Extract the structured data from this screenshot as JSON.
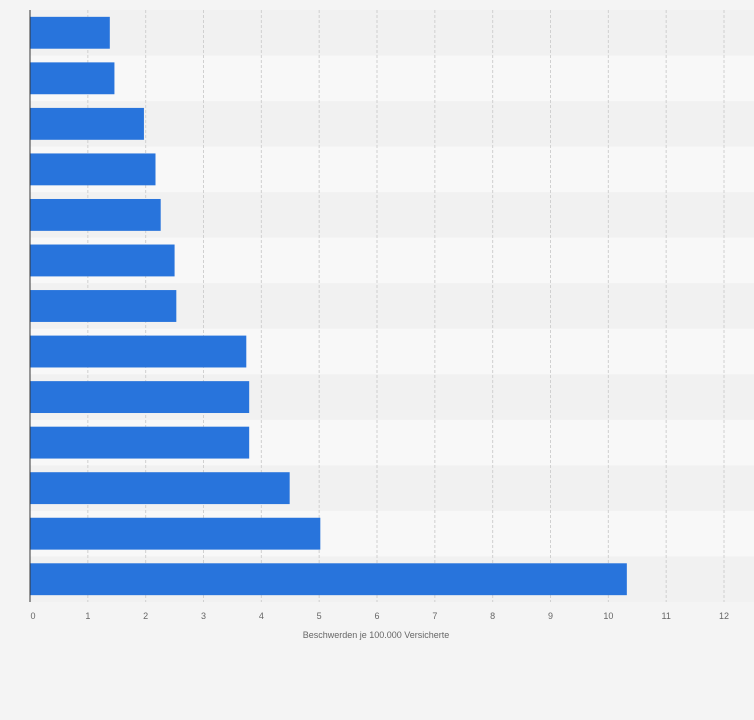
{
  "chart_data": {
    "type": "bar",
    "orientation": "horizontal",
    "title": "",
    "xlabel": "Beschwerden je 100.000 Versicherte",
    "ylabel": "",
    "xlim": [
      0,
      12
    ],
    "xticks": [
      "0",
      "1",
      "2",
      "3",
      "4",
      "5",
      "6",
      "7",
      "8",
      "9",
      "10",
      "11",
      "12"
    ],
    "categories": [
      "",
      "",
      "",
      "",
      "",
      "",
      "",
      "",
      "",
      "",
      "",
      "",
      ""
    ],
    "values": [
      1.38,
      1.46,
      1.97,
      2.17,
      2.26,
      2.5,
      2.53,
      3.74,
      3.79,
      3.79,
      4.49,
      5.02,
      10.32
    ],
    "grid": true,
    "legend": "none",
    "colors": {
      "bar": "#2874dc",
      "band_dark": "#f1f1f1",
      "band_light": "#f8f8f8",
      "grid": "#d0d0d0",
      "axis": "#333333",
      "text": "#666666",
      "background": "#f4f4f4"
    }
  }
}
